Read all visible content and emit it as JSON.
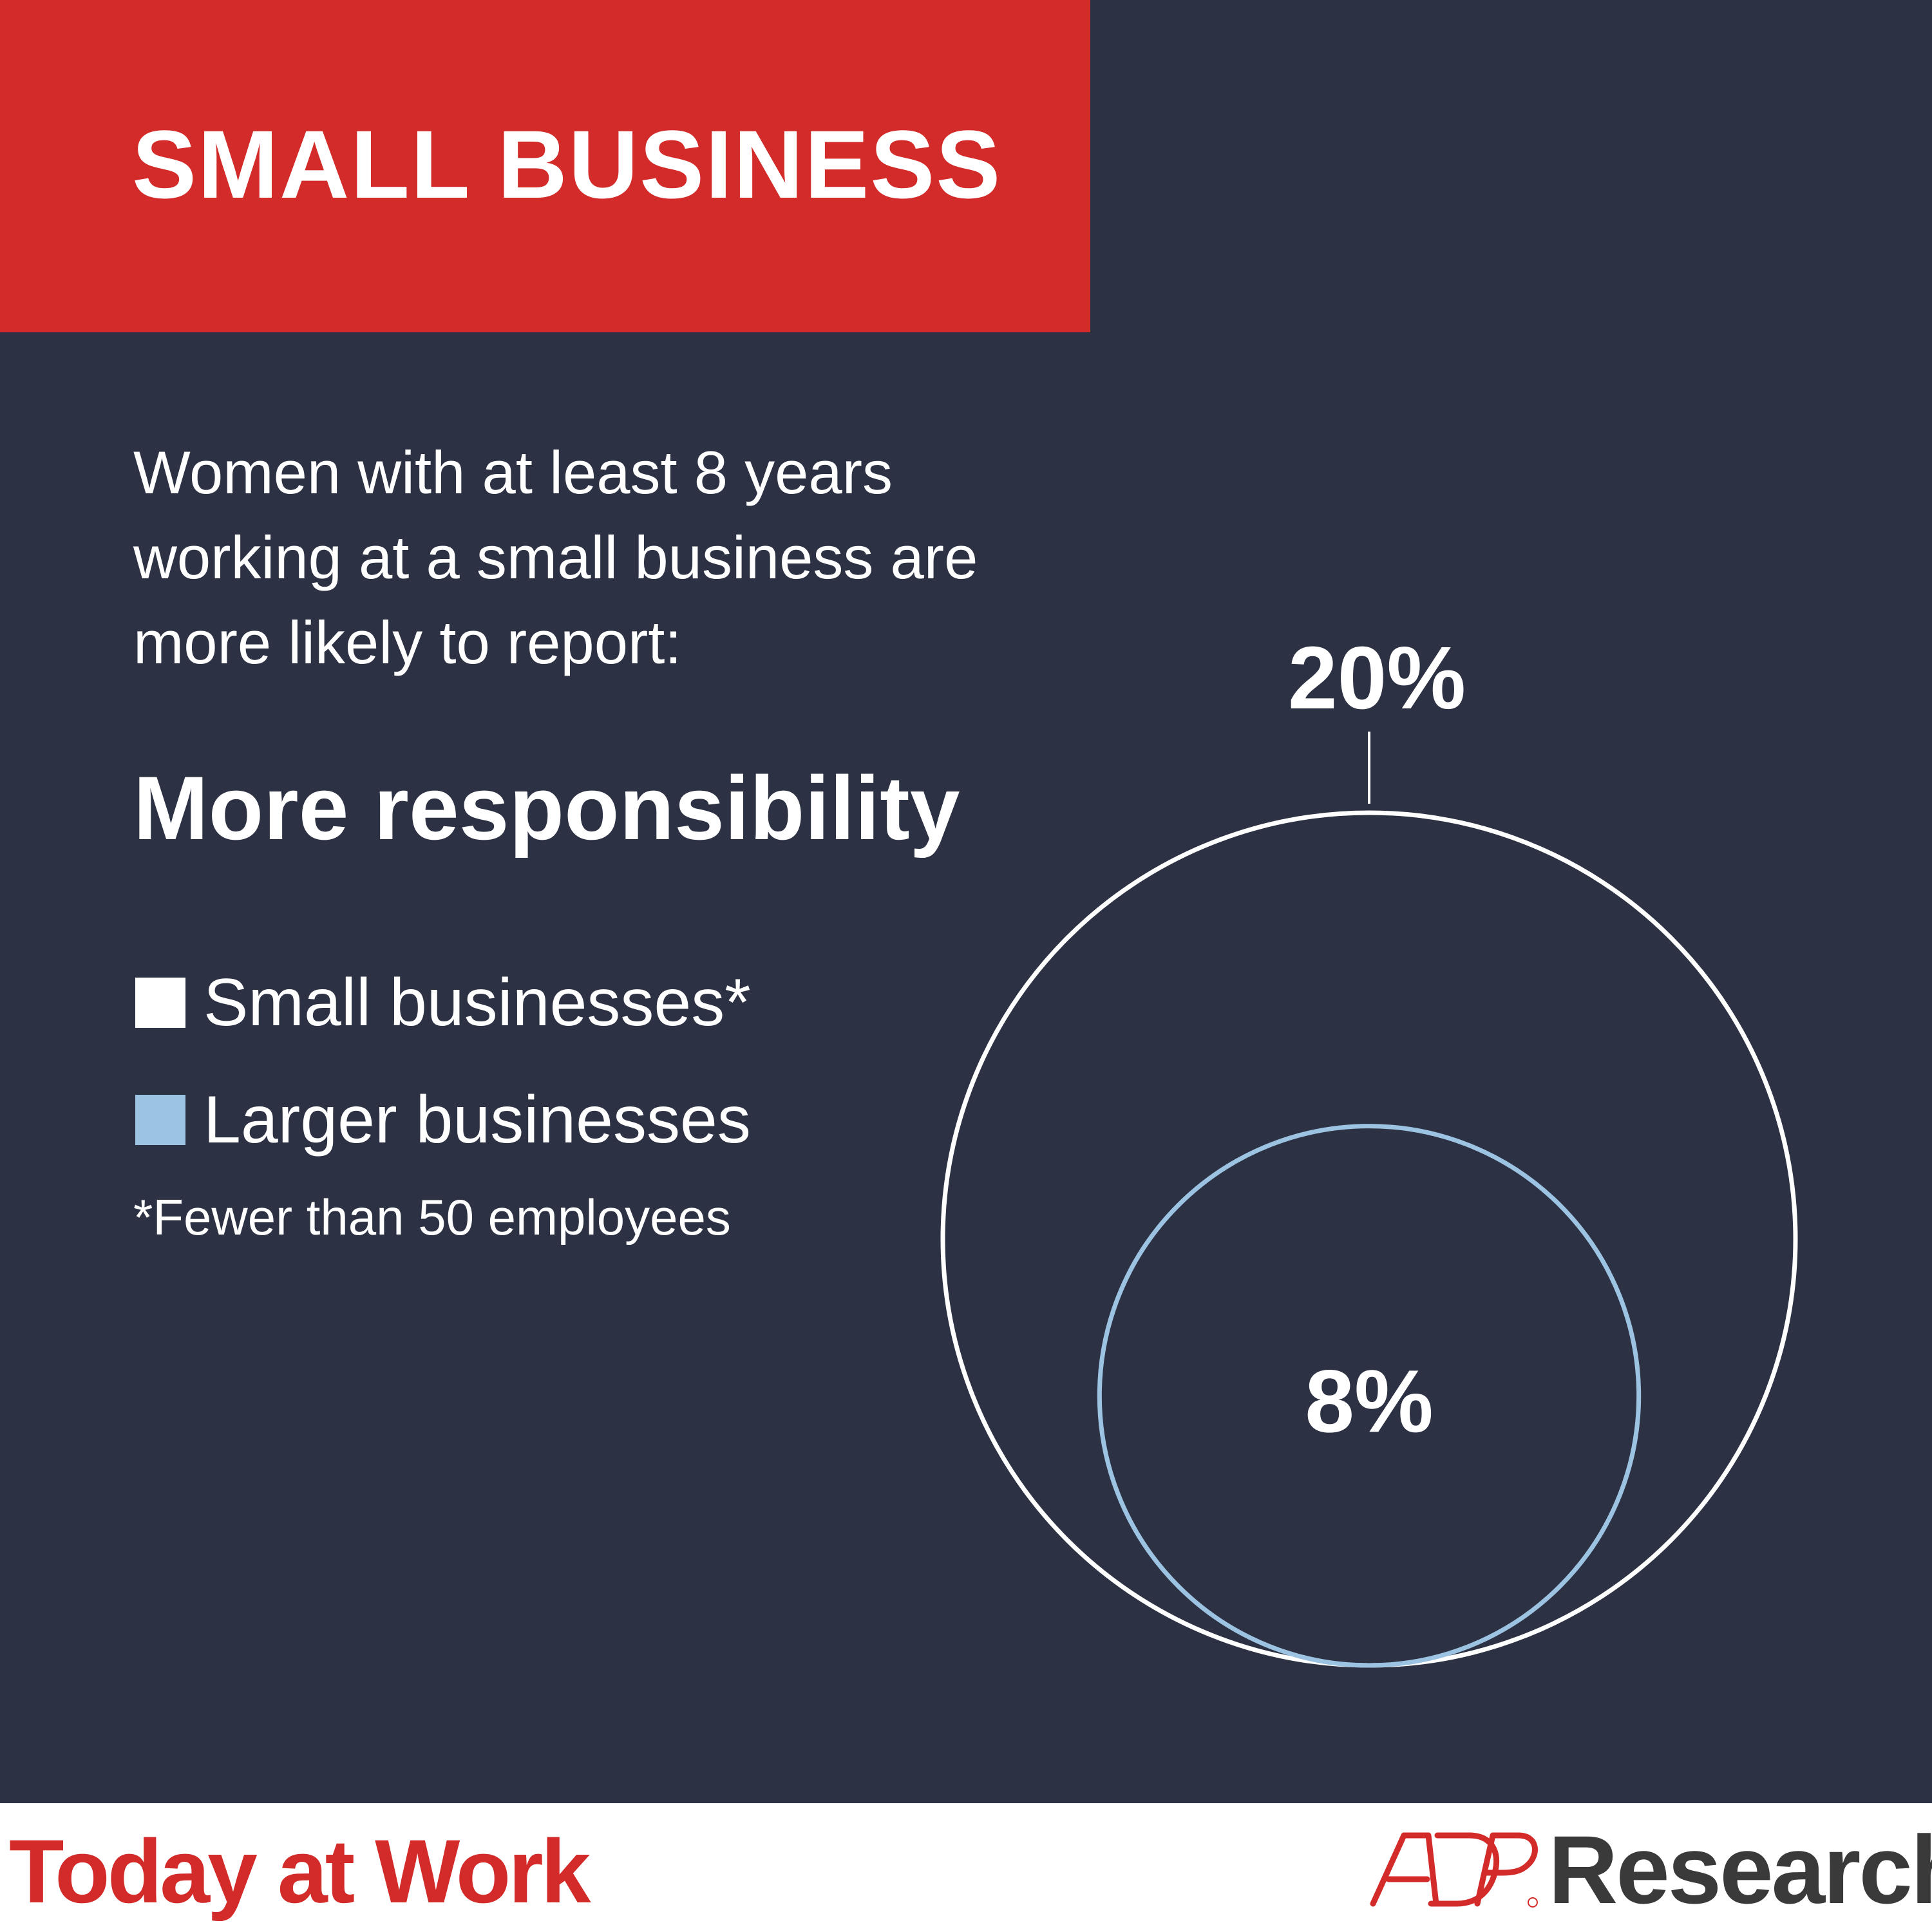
{
  "header": {
    "title": "SMALL BUSINESS"
  },
  "intro": {
    "text": "Women with at least 8 years working at a small business are more likely to report:"
  },
  "headline": "More responsibility",
  "legend": {
    "items": [
      {
        "label": "Small businesses*",
        "color": "#ffffff"
      },
      {
        "label": "Larger businesses",
        "color": "#9dc3e2"
      }
    ]
  },
  "footnote": "*Fewer than 50 employees",
  "chart_data": {
    "type": "nested-circle",
    "title": "More responsibility",
    "series": [
      {
        "name": "Small businesses*",
        "value": 20,
        "value_label": "20%",
        "color": "#ffffff"
      },
      {
        "name": "Larger businesses",
        "value": 8,
        "value_label": "8%",
        "color": "#9dc3e2"
      }
    ],
    "unit": "%"
  },
  "footer": {
    "left_text": "Today at Work",
    "brand_logo_text": "ADP",
    "brand_text": "Research"
  },
  "colors": {
    "background": "#2c3143",
    "accent_red": "#d22b29",
    "white": "#ffffff",
    "light_blue": "#9dc3e2",
    "brand_gray": "#3a3a3a"
  }
}
